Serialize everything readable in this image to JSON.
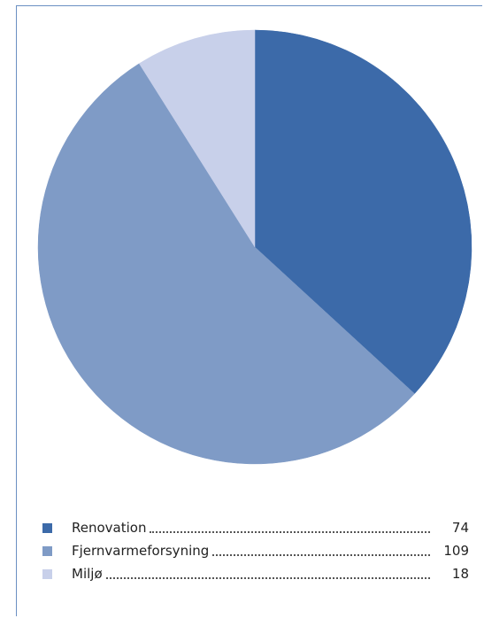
{
  "chart_data": {
    "type": "pie",
    "title": "",
    "slices": [
      {
        "label": "Renovation",
        "value": 74,
        "color": "#3c6aa9"
      },
      {
        "label": "Fjernvarmeforsyning",
        "value": 109,
        "color": "#7f9bc6"
      },
      {
        "label": "Miljø",
        "value": 18,
        "color": "#c8d0ea"
      }
    ],
    "start_angle": "12 o'clock",
    "direction": "clockwise",
    "legend_position": "bottom"
  }
}
